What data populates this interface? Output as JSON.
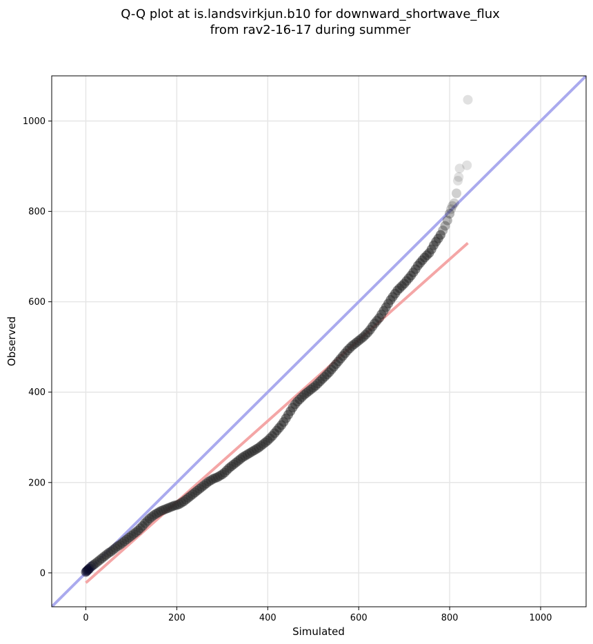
{
  "chart_data": {
    "type": "scatter",
    "title_lines": [
      "Q-Q plot at is.landsvirkjun.b10 for downward_shortwave_flux",
      "from rav2-16-17 during summer"
    ],
    "xlabel": "Simulated",
    "ylabel": "Observed",
    "xlim": [
      -75,
      1100
    ],
    "ylim": [
      -75,
      1100
    ],
    "xticks": [
      0,
      200,
      400,
      600,
      800,
      1000
    ],
    "yticks": [
      0,
      200,
      400,
      600,
      800,
      1000
    ],
    "grid": true,
    "reference_lines": [
      {
        "role": "1:1 line",
        "color": "#aaaaee",
        "points": [
          [
            -75,
            -75
          ],
          [
            1100,
            1100
          ]
        ]
      },
      {
        "role": "fit line",
        "color": "#f4a6a6",
        "points": [
          [
            0,
            -22
          ],
          [
            840,
            730
          ]
        ]
      }
    ],
    "points": [
      [
        0,
        2
      ],
      [
        2,
        4
      ],
      [
        4,
        6
      ],
      [
        6,
        8
      ],
      [
        8,
        10
      ],
      [
        12,
        14
      ],
      [
        16,
        17
      ],
      [
        20,
        20
      ],
      [
        25,
        24
      ],
      [
        30,
        28
      ],
      [
        35,
        32
      ],
      [
        40,
        36
      ],
      [
        45,
        40
      ],
      [
        50,
        44
      ],
      [
        55,
        47
      ],
      [
        60,
        51
      ],
      [
        65,
        55
      ],
      [
        70,
        59
      ],
      [
        75,
        62
      ],
      [
        80,
        66
      ],
      [
        85,
        70
      ],
      [
        90,
        74
      ],
      [
        95,
        78
      ],
      [
        100,
        82
      ],
      [
        105,
        86
      ],
      [
        110,
        90
      ],
      [
        115,
        94
      ],
      [
        120,
        99
      ],
      [
        125,
        104
      ],
      [
        130,
        110
      ],
      [
        135,
        115
      ],
      [
        140,
        120
      ],
      [
        145,
        124
      ],
      [
        150,
        128
      ],
      [
        155,
        131
      ],
      [
        160,
        134
      ],
      [
        165,
        137
      ],
      [
        170,
        139
      ],
      [
        175,
        141
      ],
      [
        180,
        143
      ],
      [
        185,
        145
      ],
      [
        190,
        147
      ],
      [
        195,
        149
      ],
      [
        200,
        150
      ],
      [
        205,
        152
      ],
      [
        210,
        155
      ],
      [
        215,
        158
      ],
      [
        220,
        162
      ],
      [
        225,
        166
      ],
      [
        230,
        170
      ],
      [
        235,
        174
      ],
      [
        240,
        178
      ],
      [
        245,
        182
      ],
      [
        250,
        186
      ],
      [
        255,
        190
      ],
      [
        260,
        194
      ],
      [
        265,
        198
      ],
      [
        270,
        202
      ],
      [
        275,
        205
      ],
      [
        280,
        208
      ],
      [
        285,
        210
      ],
      [
        290,
        212
      ],
      [
        295,
        215
      ],
      [
        300,
        218
      ],
      [
        305,
        222
      ],
      [
        310,
        227
      ],
      [
        315,
        232
      ],
      [
        320,
        236
      ],
      [
        325,
        240
      ],
      [
        330,
        244
      ],
      [
        335,
        248
      ],
      [
        340,
        252
      ],
      [
        345,
        256
      ],
      [
        350,
        259
      ],
      [
        355,
        262
      ],
      [
        360,
        265
      ],
      [
        365,
        268
      ],
      [
        370,
        271
      ],
      [
        375,
        274
      ],
      [
        380,
        277
      ],
      [
        385,
        281
      ],
      [
        390,
        285
      ],
      [
        395,
        289
      ],
      [
        400,
        293
      ],
      [
        405,
        298
      ],
      [
        410,
        303
      ],
      [
        415,
        309
      ],
      [
        420,
        315
      ],
      [
        425,
        321
      ],
      [
        430,
        327
      ],
      [
        435,
        334
      ],
      [
        440,
        342
      ],
      [
        445,
        350
      ],
      [
        450,
        358
      ],
      [
        455,
        366
      ],
      [
        460,
        373
      ],
      [
        465,
        379
      ],
      [
        470,
        384
      ],
      [
        475,
        389
      ],
      [
        480,
        394
      ],
      [
        485,
        398
      ],
      [
        490,
        402
      ],
      [
        495,
        406
      ],
      [
        500,
        410
      ],
      [
        505,
        414
      ],
      [
        510,
        419
      ],
      [
        515,
        424
      ],
      [
        520,
        429
      ],
      [
        525,
        434
      ],
      [
        530,
        439
      ],
      [
        535,
        444
      ],
      [
        540,
        450
      ],
      [
        545,
        456
      ],
      [
        550,
        462
      ],
      [
        555,
        468
      ],
      [
        560,
        474
      ],
      [
        565,
        480
      ],
      [
        570,
        486
      ],
      [
        575,
        492
      ],
      [
        580,
        497
      ],
      [
        585,
        502
      ],
      [
        590,
        506
      ],
      [
        595,
        510
      ],
      [
        600,
        514
      ],
      [
        605,
        518
      ],
      [
        610,
        522
      ],
      [
        615,
        527
      ],
      [
        620,
        532
      ],
      [
        625,
        538
      ],
      [
        630,
        545
      ],
      [
        635,
        552
      ],
      [
        640,
        558
      ],
      [
        645,
        564
      ],
      [
        650,
        572
      ],
      [
        655,
        580
      ],
      [
        660,
        588
      ],
      [
        665,
        596
      ],
      [
        670,
        604
      ],
      [
        675,
        611
      ],
      [
        680,
        618
      ],
      [
        685,
        625
      ],
      [
        690,
        630
      ],
      [
        695,
        635
      ],
      [
        700,
        640
      ],
      [
        705,
        646
      ],
      [
        710,
        652
      ],
      [
        715,
        658
      ],
      [
        720,
        665
      ],
      [
        725,
        672
      ],
      [
        730,
        680
      ],
      [
        735,
        686
      ],
      [
        740,
        692
      ],
      [
        745,
        698
      ],
      [
        750,
        703
      ],
      [
        755,
        708
      ],
      [
        760,
        716
      ],
      [
        765,
        725
      ],
      [
        770,
        733
      ],
      [
        775,
        740
      ],
      [
        780,
        748
      ],
      [
        785,
        758
      ],
      [
        790,
        768
      ],
      [
        795,
        780
      ],
      [
        800,
        795
      ],
      [
        803,
        805
      ],
      [
        806,
        812
      ],
      [
        810,
        818
      ],
      [
        815,
        840
      ],
      [
        818,
        868
      ],
      [
        820,
        876
      ],
      [
        822,
        895
      ],
      [
        838,
        902
      ],
      [
        840,
        1047
      ]
    ]
  }
}
